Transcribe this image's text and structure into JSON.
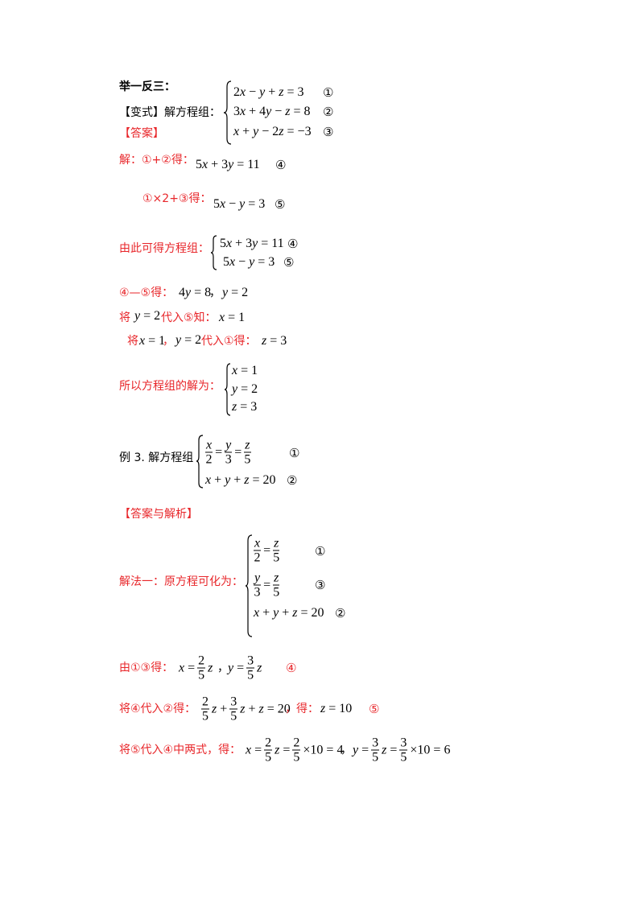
{
  "heading": "举一反三：",
  "variant": {
    "label": "【变式】解方程组：",
    "equations": [
      "2x − y + z = 3",
      "3x + 4y − z = 8",
      "x + y − 2z = −3"
    ],
    "markers": [
      "①",
      "②",
      "③"
    ]
  },
  "answer_label": "【答案】",
  "step1": {
    "text": "解：①+②得：",
    "equation": "5x + 3y = 11",
    "marker": "④"
  },
  "step2": {
    "text": "①×2+③得：",
    "equation": "5x − y = 3",
    "marker": "⑤"
  },
  "step3": {
    "text": "由此可得方程组：",
    "equations": [
      "5x + 3y = 11",
      "5x − y = 3"
    ],
    "markers": [
      "④",
      "⑤"
    ]
  },
  "step4": {
    "text": "④—⑤得：",
    "eq1": "4y = 8",
    "sep": "，",
    "eq2": "y = 2"
  },
  "step5": {
    "pre": "将",
    "eq1": "y = 2",
    "mid": "代入⑤知：",
    "eq2": "x = 1"
  },
  "step6": {
    "pre": "将",
    "eq1": "x = 1",
    "sep": "，",
    "eq2": "y = 2",
    "mid": "代入①得：",
    "eq3": "z = 3"
  },
  "solution": {
    "text": "所以方程组的解为：",
    "equations": [
      "x = 1",
      "y = 2",
      "z = 3"
    ]
  },
  "example3": {
    "label": "例 3.  解方程组",
    "eq1": [
      {
        "num": "x",
        "den": "2"
      },
      "=",
      {
        "num": "y",
        "den": "3"
      },
      "=",
      {
        "num": "z",
        "den": "5"
      }
    ],
    "eq2": "x + y + z = 20",
    "markers": [
      "①",
      "②"
    ]
  },
  "answer_analysis_label": "【答案与解析】",
  "method1": {
    "text": "解法一：原方程可化为：",
    "eq1": [
      {
        "num": "x",
        "den": "2"
      },
      "=",
      {
        "num": "z",
        "den": "5"
      }
    ],
    "eq2": [
      {
        "num": "y",
        "den": "3"
      },
      "=",
      {
        "num": "z",
        "den": "5"
      }
    ],
    "eq3": "x + y + z = 20",
    "markers": [
      "①",
      "③",
      "②"
    ]
  },
  "step7": {
    "text": "由①③得：",
    "eq1": [
      "x =",
      {
        "num": "2",
        "den": "5"
      },
      "z"
    ],
    "sep": "，",
    "eq2": [
      "y =",
      {
        "num": "3",
        "den": "5"
      },
      "z"
    ],
    "marker": "④"
  },
  "step8": {
    "text": "将④代入②得：",
    "eq1": [
      {
        "num": "2",
        "den": "5"
      },
      "z +",
      {
        "num": "3",
        "den": "5"
      },
      "z + z = 20"
    ],
    "mid": "，得：",
    "eq2": "z = 10",
    "marker": "⑤"
  },
  "step9": {
    "text": "将⑤代入④中两式，得：",
    "eq1": [
      "x =",
      {
        "num": "2",
        "den": "5"
      },
      "z =",
      {
        "num": "2",
        "den": "5"
      },
      "×10 = 4"
    ],
    "sep": "，",
    "eq2": [
      "y =",
      {
        "num": "3",
        "den": "5"
      },
      "z =",
      {
        "num": "3",
        "den": "5"
      },
      "×10 = 6"
    ]
  }
}
